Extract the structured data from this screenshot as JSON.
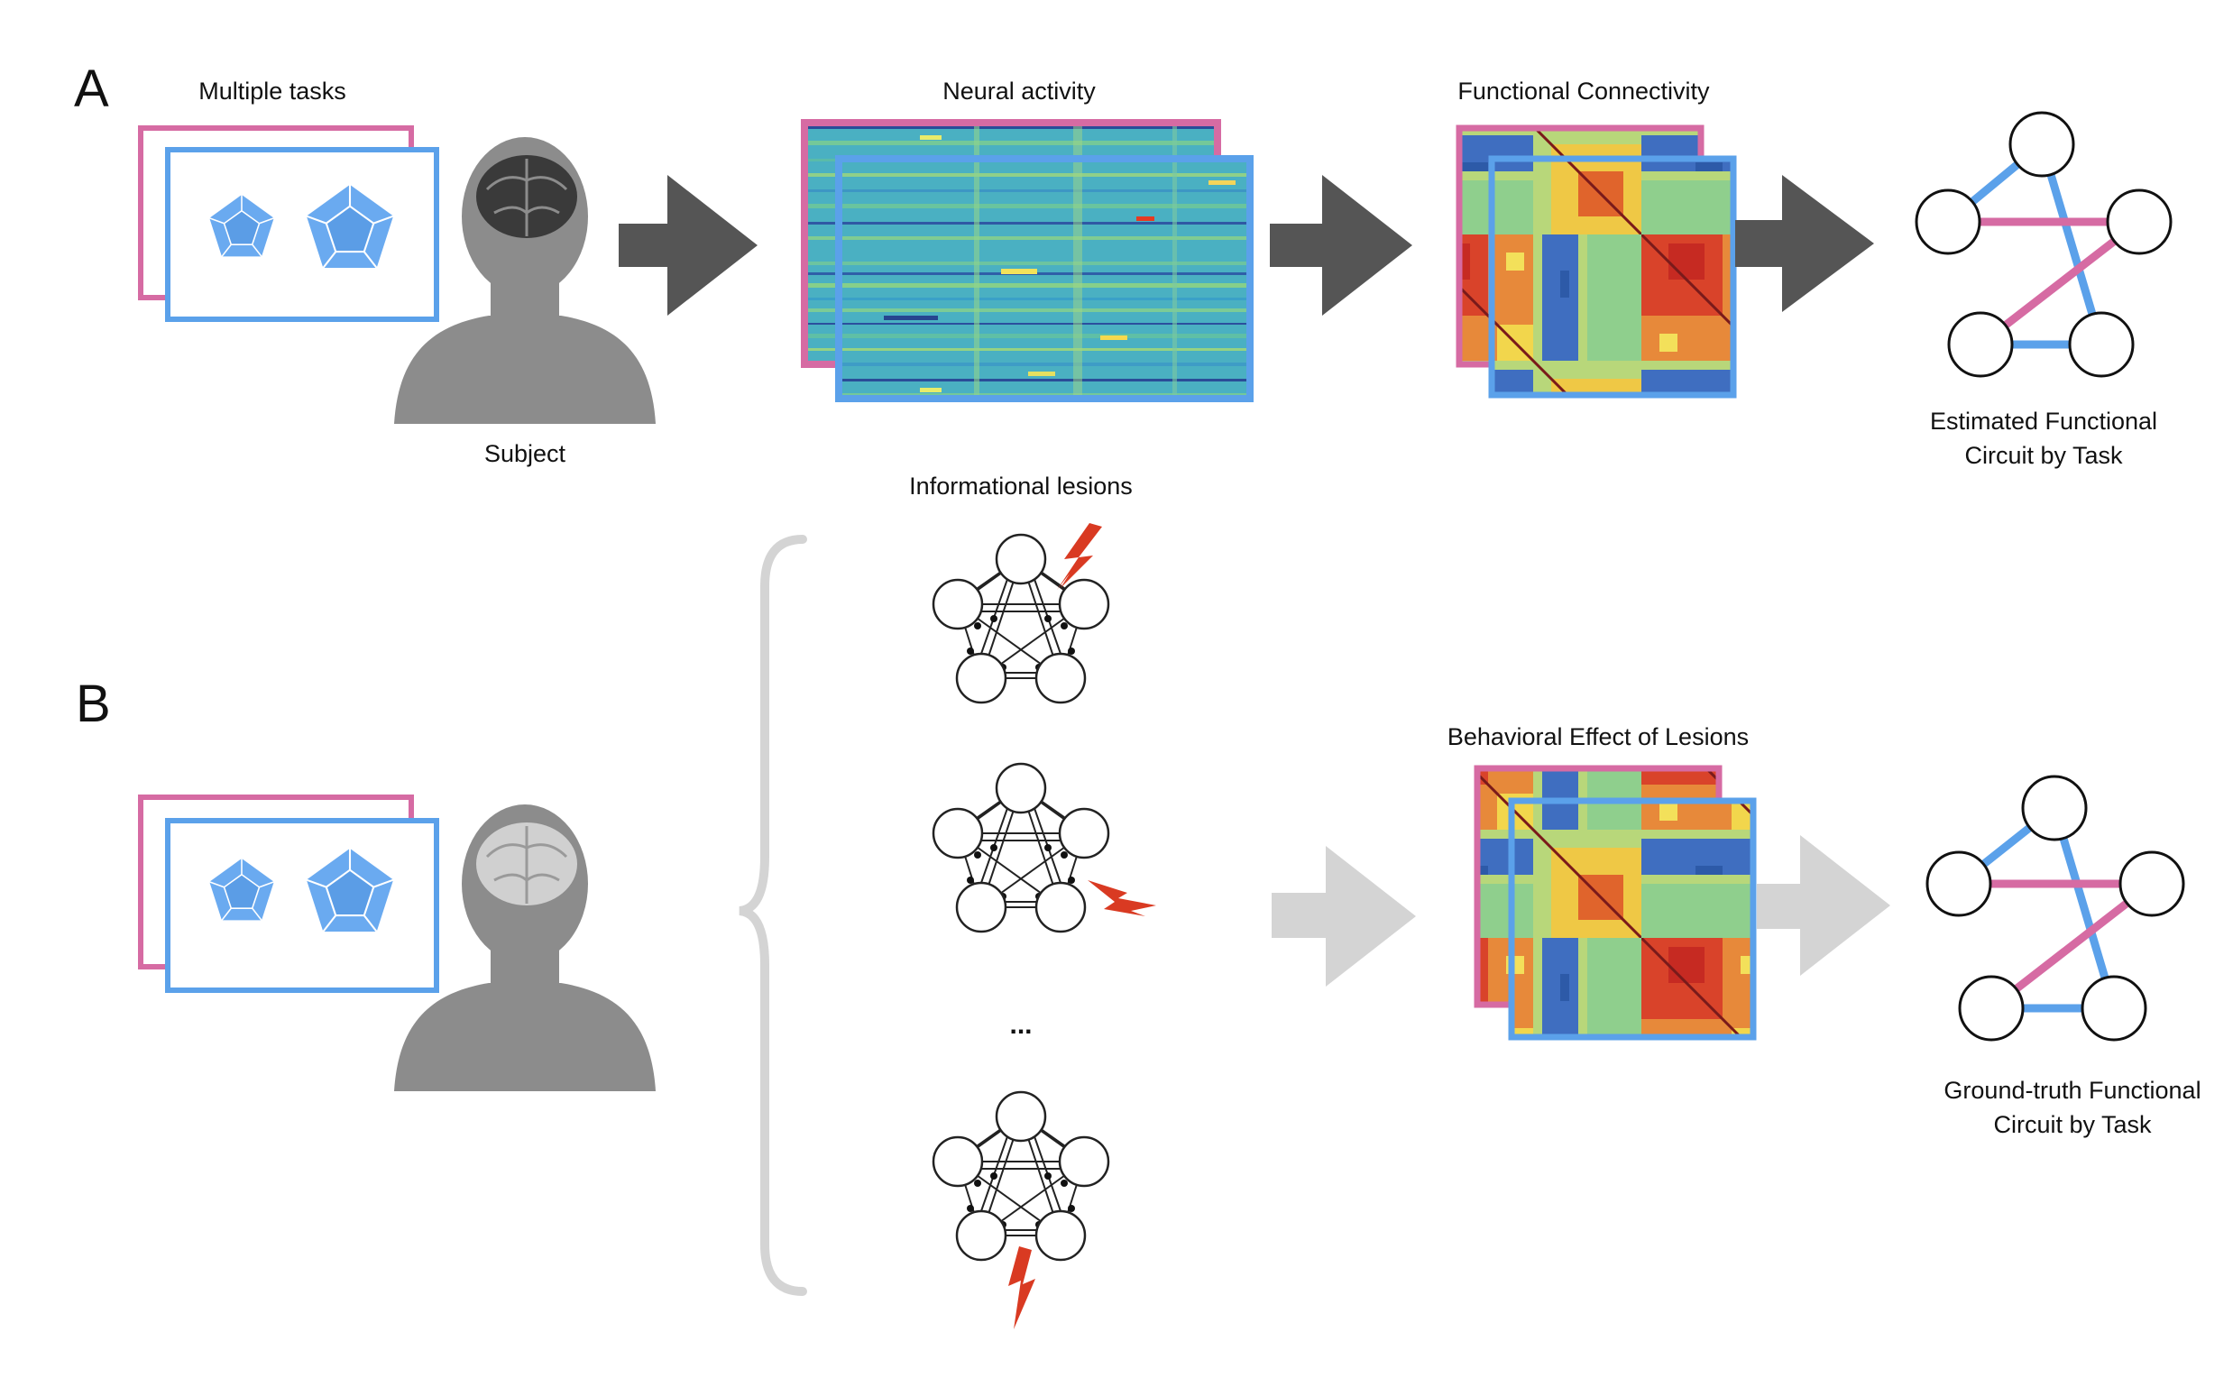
{
  "panels": {
    "a": {
      "letter": "A",
      "multiple_tasks": "Multiple tasks",
      "subject": "Subject",
      "neural_activity": "Neural activity",
      "functional_connectivity": "Functional Connectivity",
      "estimated_line1": "Estimated Functional",
      "estimated_line2": "Circuit by Task"
    },
    "b": {
      "letter": "B",
      "informational_lesions": "Informational lesions",
      "ellipsis": "...",
      "behavioral_effect": "Behavioral Effect of Lesions",
      "ground_truth_line1": "Ground-truth Functional",
      "ground_truth_line2": "Circuit by Task"
    }
  },
  "colors": {
    "task_pink": "#d66ba3",
    "task_blue": "#5ba1ea",
    "arrow_dark": "#555555",
    "arrow_light": "#d4d4d4",
    "lesion_red": "#d93a22",
    "silhouette": "#8c8c8c",
    "brain_dark": "#3a3a3a",
    "brain_light": "#d0d0d0"
  },
  "icons": [
    "dodecahedron-icon",
    "person-silhouette-icon",
    "brain-icon",
    "lightning-bolt-icon",
    "right-arrow-icon",
    "curly-brace-icon"
  ]
}
